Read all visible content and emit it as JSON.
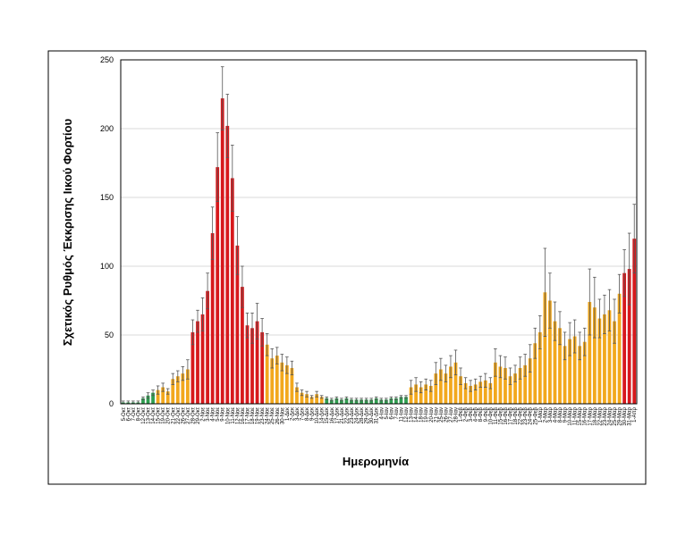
{
  "chart_data": {
    "type": "bar",
    "ylabel": "Σχετικός Ρυθμός Έκκρισης Ιικού Φορτίου",
    "xlabel": "Ημερομηνία",
    "categories": [
      "5-Οκτ",
      "6-Οκτ",
      "7-Οκτ",
      "8-Οκτ",
      "12-Οκτ",
      "13-Οκτ",
      "14-Οκτ",
      "15-Οκτ",
      "19-Οκτ",
      "20-Οκτ",
      "21-Οκτ",
      "22-Οκτ",
      "26-Οκτ",
      "27-Οκτ",
      "28-Οκτ",
      "29-Οκτ",
      "2-Νοε",
      "3-Νοε",
      "4-Νοε",
      "5-Νοε",
      "9-Νοε",
      "10-Νοε",
      "11-Νοε",
      "12-Νοε",
      "16-Νοε",
      "17-Νοε",
      "18-Νοε",
      "19-Νοε",
      "23-Νοε",
      "24-Νοε",
      "25-Νοε",
      "26-Νοε",
      "30-Νοε",
      "1-Δεκ",
      "2-Δεκ",
      "3-Δεκ",
      "7-Δεκ",
      "8-Δεκ",
      "9-Δεκ",
      "10-Δεκ",
      "14-Δεκ",
      "15-Δεκ",
      "16-Δεκ",
      "17-Δεκ",
      "21-Δεκ",
      "22-Δεκ",
      "23-Δεκ",
      "24-Δεκ",
      "28-Δεκ",
      "29-Δεκ",
      "30-Δεκ",
      "31-Δεκ",
      "4-Ιαν",
      "5-Ιαν",
      "6-Ιαν",
      "7-Ιαν",
      "11-Ιαν",
      "12-Ιαν",
      "13-Ιαν",
      "14-Ιαν",
      "18-Ιαν",
      "19-Ιαν",
      "20-Ιαν",
      "21-Ιαν",
      "25-Ιαν",
      "26-Ιαν",
      "27-Ιαν",
      "28-Ιαν",
      "1-Φεβ",
      "2-Φεβ",
      "3-Φεβ",
      "4-Φεβ",
      "8-Φεβ",
      "9-Φεβ",
      "10-Φεβ",
      "11-Φεβ",
      "15-Φεβ",
      "16-Φεβ",
      "17-Φεβ",
      "18-Φεβ",
      "22-Φεβ",
      "23-Φεβ",
      "24-Φεβ",
      "25-Φεβ",
      "1-Μαρ",
      "2-Μαρ",
      "3-Μαρ",
      "4-Μαρ",
      "8-Μαρ",
      "9-Μαρ",
      "10-Μαρ",
      "11-Μαρ",
      "15-Μαρ",
      "16-Μαρ",
      "17-Μαρ",
      "18-Μαρ",
      "22-Μαρ",
      "23-Μαρ",
      "24-Μαρ",
      "25-Μαρ",
      "29-Μαρ",
      "30-Μαρ",
      "31-Μαρ",
      "1-Απρ"
    ],
    "values": [
      1,
      1,
      1,
      1,
      4,
      6,
      8,
      10,
      12,
      9,
      18,
      20,
      22,
      25,
      52,
      60,
      65,
      82,
      124,
      172,
      222,
      202,
      164,
      115,
      85,
      57,
      55,
      60,
      52,
      43,
      33,
      35,
      30,
      28,
      26,
      12,
      8,
      7,
      5,
      7,
      5,
      4,
      3,
      4,
      3,
      4,
      3,
      3,
      3,
      3,
      3,
      4,
      3,
      3,
      4,
      4,
      5,
      5,
      12,
      14,
      12,
      14,
      13,
      22,
      25,
      22,
      27,
      30,
      20,
      15,
      13,
      14,
      16,
      17,
      15,
      30,
      27,
      26,
      20,
      22,
      26,
      28,
      33,
      44,
      52,
      81,
      75,
      60,
      55,
      42,
      47,
      49,
      42,
      45,
      74,
      70,
      62,
      65,
      68,
      60,
      80,
      95,
      98,
      120
    ],
    "errors": [
      1,
      1,
      1,
      1,
      1,
      2,
      2,
      3,
      3,
      2,
      4,
      4,
      5,
      7,
      9,
      8,
      12,
      13,
      19,
      25,
      23,
      23,
      24,
      21,
      15,
      9,
      11,
      13,
      10,
      8,
      7,
      6,
      6,
      6,
      5,
      3,
      2,
      2,
      1,
      2,
      1,
      1,
      1,
      1,
      1,
      1,
      1,
      1,
      1,
      1,
      1,
      1,
      1,
      1,
      1,
      1,
      1,
      1,
      5,
      5,
      4,
      4,
      4,
      8,
      8,
      6,
      8,
      9,
      6,
      4,
      4,
      4,
      4,
      5,
      4,
      10,
      8,
      8,
      6,
      6,
      8,
      8,
      10,
      11,
      12,
      32,
      20,
      14,
      12,
      10,
      12,
      12,
      10,
      10,
      24,
      22,
      14,
      14,
      15,
      16,
      14,
      17,
      26,
      25
    ],
    "colors": [
      "#2e9e4f",
      "#2e9e4f",
      "#2e9e4f",
      "#2e9e4f",
      "#2e9e4f",
      "#2e9e4f",
      "#2e9e4f",
      "#f2a81d",
      "#f2a81d",
      "#f2a81d",
      "#f2a81d",
      "#f2a81d",
      "#f2a81d",
      "#f2a81d",
      "#d7191c",
      "#d7191c",
      "#d7191c",
      "#d7191c",
      "#d7191c",
      "#d7191c",
      "#d7191c",
      "#d7191c",
      "#d7191c",
      "#d7191c",
      "#d7191c",
      "#d7191c",
      "#d7191c",
      "#d7191c",
      "#d7191c",
      "#f2a81d",
      "#f2a81d",
      "#f2a81d",
      "#f2a81d",
      "#f2a81d",
      "#f2a81d",
      "#f2a81d",
      "#f2a81d",
      "#f2a81d",
      "#f2a81d",
      "#f2a81d",
      "#f2a81d",
      "#2e9e4f",
      "#2e9e4f",
      "#2e9e4f",
      "#2e9e4f",
      "#2e9e4f",
      "#2e9e4f",
      "#2e9e4f",
      "#2e9e4f",
      "#2e9e4f",
      "#2e9e4f",
      "#2e9e4f",
      "#2e9e4f",
      "#2e9e4f",
      "#2e9e4f",
      "#2e9e4f",
      "#2e9e4f",
      "#2e9e4f",
      "#f2a81d",
      "#f2a81d",
      "#f2a81d",
      "#f2a81d",
      "#f2a81d",
      "#f2a81d",
      "#f2a81d",
      "#f2a81d",
      "#f2a81d",
      "#f2a81d",
      "#f2a81d",
      "#f2a81d",
      "#f2a81d",
      "#f2a81d",
      "#f2a81d",
      "#f2a81d",
      "#f2a81d",
      "#f2a81d",
      "#f2a81d",
      "#f2a81d",
      "#f2a81d",
      "#f2a81d",
      "#f2a81d",
      "#f2a81d",
      "#f2a81d",
      "#f2a81d",
      "#f2a81d",
      "#f2a81d",
      "#f2a81d",
      "#f2a81d",
      "#f2a81d",
      "#f2a81d",
      "#f2a81d",
      "#f2a81d",
      "#f2a81d",
      "#f2a81d",
      "#f2a81d",
      "#f2a81d",
      "#f2a81d",
      "#f2a81d",
      "#f2a81d",
      "#f2a81d",
      "#f2a81d",
      "#d7191c",
      "#d7191c",
      "#d7191c"
    ],
    "ylim": [
      0,
      250
    ],
    "yticks": [
      0,
      50,
      100,
      150,
      200,
      250
    ],
    "grid": true
  }
}
